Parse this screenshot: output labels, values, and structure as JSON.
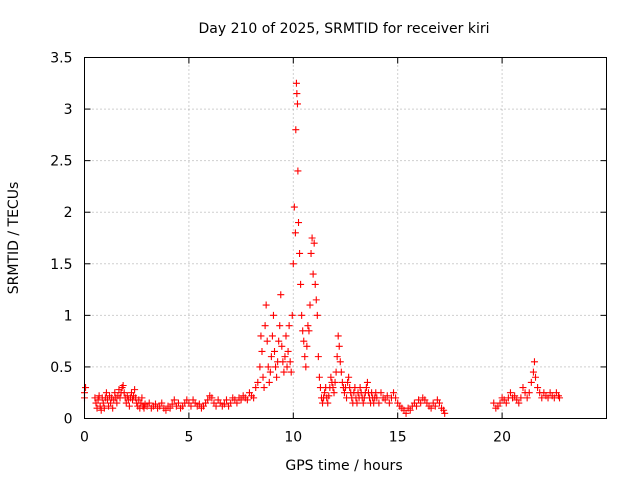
{
  "chart_data": {
    "type": "scatter",
    "title": "Day 210 of 2025, SRMTID for receiver kiri",
    "xlabel": "GPS time / hours",
    "ylabel": "SRMTID / TECUs",
    "xlim": [
      0,
      25
    ],
    "ylim": [
      0,
      3.5
    ],
    "x_ticks": [
      0,
      5,
      10,
      15,
      20
    ],
    "x_tick_labels": [
      "0",
      "5",
      "10",
      "15",
      "20"
    ],
    "y_ticks": [
      0,
      0.5,
      1,
      1.5,
      2,
      2.5,
      3,
      3.5
    ],
    "y_tick_labels": [
      "0",
      "0.5",
      "1",
      "1.5",
      "2",
      "2.5",
      "3",
      "3.5"
    ],
    "grid": true,
    "marker": "+",
    "series": [
      {
        "name": "kiri",
        "color": "#ff0000",
        "points": [
          [
            0.0,
            0.25
          ],
          [
            0.0,
            0.2
          ],
          [
            0.05,
            0.3
          ],
          [
            0.5,
            0.2
          ],
          [
            0.55,
            0.15
          ],
          [
            0.6,
            0.1
          ],
          [
            0.65,
            0.18
          ],
          [
            0.7,
            0.22
          ],
          [
            0.75,
            0.12
          ],
          [
            0.8,
            0.08
          ],
          [
            0.85,
            0.2
          ],
          [
            0.9,
            0.15
          ],
          [
            0.95,
            0.1
          ],
          [
            1.0,
            0.2
          ],
          [
            1.05,
            0.25
          ],
          [
            1.1,
            0.18
          ],
          [
            1.15,
            0.12
          ],
          [
            1.2,
            0.22
          ],
          [
            1.25,
            0.15
          ],
          [
            1.3,
            0.2
          ],
          [
            1.35,
            0.1
          ],
          [
            1.4,
            0.18
          ],
          [
            1.45,
            0.25
          ],
          [
            1.5,
            0.2
          ],
          [
            1.55,
            0.15
          ],
          [
            1.6,
            0.22
          ],
          [
            1.65,
            0.28
          ],
          [
            1.7,
            0.2
          ],
          [
            1.75,
            0.25
          ],
          [
            1.8,
            0.3
          ],
          [
            1.85,
            0.32
          ],
          [
            1.9,
            0.25
          ],
          [
            1.95,
            0.2
          ],
          [
            2.0,
            0.15
          ],
          [
            2.05,
            0.22
          ],
          [
            2.1,
            0.18
          ],
          [
            2.15,
            0.12
          ],
          [
            2.2,
            0.2
          ],
          [
            2.25,
            0.25
          ],
          [
            2.3,
            0.18
          ],
          [
            2.35,
            0.22
          ],
          [
            2.4,
            0.28
          ],
          [
            2.45,
            0.2
          ],
          [
            2.5,
            0.15
          ],
          [
            2.55,
            0.12
          ],
          [
            2.6,
            0.18
          ],
          [
            2.65,
            0.1
          ],
          [
            2.7,
            0.15
          ],
          [
            2.75,
            0.2
          ],
          [
            2.8,
            0.12
          ],
          [
            2.85,
            0.1
          ],
          [
            2.9,
            0.14
          ],
          [
            3.0,
            0.12
          ],
          [
            3.1,
            0.15
          ],
          [
            3.2,
            0.1
          ],
          [
            3.3,
            0.12
          ],
          [
            3.4,
            0.14
          ],
          [
            3.5,
            0.1
          ],
          [
            3.6,
            0.12
          ],
          [
            3.7,
            0.15
          ],
          [
            3.8,
            0.1
          ],
          [
            3.9,
            0.08
          ],
          [
            4.0,
            0.12
          ],
          [
            4.1,
            0.1
          ],
          [
            4.2,
            0.14
          ],
          [
            4.3,
            0.18
          ],
          [
            4.4,
            0.12
          ],
          [
            4.5,
            0.15
          ],
          [
            4.6,
            0.1
          ],
          [
            4.7,
            0.12
          ],
          [
            4.8,
            0.15
          ],
          [
            4.9,
            0.18
          ],
          [
            5.0,
            0.15
          ],
          [
            5.1,
            0.12
          ],
          [
            5.2,
            0.18
          ],
          [
            5.3,
            0.15
          ],
          [
            5.4,
            0.12
          ],
          [
            5.5,
            0.14
          ],
          [
            5.6,
            0.1
          ],
          [
            5.7,
            0.12
          ],
          [
            5.8,
            0.15
          ],
          [
            5.9,
            0.18
          ],
          [
            6.0,
            0.22
          ],
          [
            6.1,
            0.2
          ],
          [
            6.2,
            0.15
          ],
          [
            6.3,
            0.12
          ],
          [
            6.4,
            0.18
          ],
          [
            6.5,
            0.15
          ],
          [
            6.6,
            0.12
          ],
          [
            6.7,
            0.14
          ],
          [
            6.8,
            0.18
          ],
          [
            6.9,
            0.12
          ],
          [
            7.0,
            0.15
          ],
          [
            7.1,
            0.2
          ],
          [
            7.2,
            0.18
          ],
          [
            7.3,
            0.15
          ],
          [
            7.4,
            0.2
          ],
          [
            7.5,
            0.18
          ],
          [
            7.6,
            0.22
          ],
          [
            7.7,
            0.2
          ],
          [
            7.8,
            0.18
          ],
          [
            7.9,
            0.25
          ],
          [
            8.0,
            0.22
          ],
          [
            8.1,
            0.2
          ],
          [
            8.2,
            0.3
          ],
          [
            8.3,
            0.35
          ],
          [
            8.4,
            0.5
          ],
          [
            8.45,
            0.8
          ],
          [
            8.5,
            0.65
          ],
          [
            8.55,
            0.4
          ],
          [
            8.6,
            0.3
          ],
          [
            8.65,
            0.9
          ],
          [
            8.7,
            1.1
          ],
          [
            8.75,
            0.75
          ],
          [
            8.8,
            0.5
          ],
          [
            8.85,
            0.35
          ],
          [
            8.9,
            0.45
          ],
          [
            8.95,
            0.6
          ],
          [
            9.0,
            0.8
          ],
          [
            9.05,
            1.0
          ],
          [
            9.1,
            0.65
          ],
          [
            9.15,
            0.5
          ],
          [
            9.2,
            0.4
          ],
          [
            9.25,
            0.55
          ],
          [
            9.3,
            0.75
          ],
          [
            9.35,
            0.9
          ],
          [
            9.4,
            1.2
          ],
          [
            9.45,
            0.7
          ],
          [
            9.5,
            0.55
          ],
          [
            9.55,
            0.45
          ],
          [
            9.6,
            0.6
          ],
          [
            9.65,
            0.8
          ],
          [
            9.7,
            0.5
          ],
          [
            9.75,
            0.65
          ],
          [
            9.8,
            0.9
          ],
          [
            9.85,
            0.55
          ],
          [
            9.9,
            0.45
          ],
          [
            9.95,
            1.0
          ],
          [
            10.0,
            1.5
          ],
          [
            10.05,
            2.05
          ],
          [
            10.1,
            1.8
          ],
          [
            10.12,
            2.8
          ],
          [
            10.15,
            3.25
          ],
          [
            10.17,
            3.15
          ],
          [
            10.2,
            3.05
          ],
          [
            10.22,
            2.4
          ],
          [
            10.25,
            1.9
          ],
          [
            10.3,
            1.6
          ],
          [
            10.35,
            1.3
          ],
          [
            10.4,
            1.0
          ],
          [
            10.45,
            0.85
          ],
          [
            10.5,
            0.75
          ],
          [
            10.55,
            0.6
          ],
          [
            10.6,
            0.5
          ],
          [
            10.65,
            0.7
          ],
          [
            10.7,
            0.9
          ],
          [
            10.75,
            0.85
          ],
          [
            10.8,
            1.1
          ],
          [
            10.85,
            1.6
          ],
          [
            10.9,
            1.75
          ],
          [
            10.95,
            1.4
          ],
          [
            11.0,
            1.7
          ],
          [
            11.05,
            1.3
          ],
          [
            11.1,
            1.15
          ],
          [
            11.15,
            1.0
          ],
          [
            11.2,
            0.6
          ],
          [
            11.25,
            0.4
          ],
          [
            11.3,
            0.3
          ],
          [
            11.35,
            0.2
          ],
          [
            11.4,
            0.15
          ],
          [
            11.45,
            0.2
          ],
          [
            11.5,
            0.25
          ],
          [
            11.55,
            0.3
          ],
          [
            11.6,
            0.2
          ],
          [
            11.65,
            0.15
          ],
          [
            11.7,
            0.22
          ],
          [
            11.75,
            0.3
          ],
          [
            11.8,
            0.4
          ],
          [
            11.85,
            0.35
          ],
          [
            11.9,
            0.3
          ],
          [
            11.95,
            0.25
          ],
          [
            12.0,
            0.35
          ],
          [
            12.05,
            0.45
          ],
          [
            12.1,
            0.6
          ],
          [
            12.15,
            0.8
          ],
          [
            12.2,
            0.7
          ],
          [
            12.25,
            0.55
          ],
          [
            12.3,
            0.45
          ],
          [
            12.35,
            0.35
          ],
          [
            12.4,
            0.3
          ],
          [
            12.45,
            0.25
          ],
          [
            12.5,
            0.3
          ],
          [
            12.55,
            0.2
          ],
          [
            12.6,
            0.35
          ],
          [
            12.65,
            0.4
          ],
          [
            12.7,
            0.3
          ],
          [
            12.75,
            0.25
          ],
          [
            12.8,
            0.2
          ],
          [
            12.85,
            0.15
          ],
          [
            12.9,
            0.25
          ],
          [
            12.95,
            0.3
          ],
          [
            13.0,
            0.2
          ],
          [
            13.05,
            0.15
          ],
          [
            13.1,
            0.25
          ],
          [
            13.15,
            0.2
          ],
          [
            13.2,
            0.3
          ],
          [
            13.25,
            0.25
          ],
          [
            13.3,
            0.2
          ],
          [
            13.35,
            0.15
          ],
          [
            13.4,
            0.2
          ],
          [
            13.45,
            0.25
          ],
          [
            13.5,
            0.3
          ],
          [
            13.55,
            0.35
          ],
          [
            13.6,
            0.25
          ],
          [
            13.65,
            0.2
          ],
          [
            13.7,
            0.15
          ],
          [
            13.75,
            0.25
          ],
          [
            13.8,
            0.2
          ],
          [
            13.85,
            0.15
          ],
          [
            13.9,
            0.2
          ],
          [
            13.95,
            0.25
          ],
          [
            14.0,
            0.2
          ],
          [
            14.1,
            0.15
          ],
          [
            14.2,
            0.25
          ],
          [
            14.3,
            0.2
          ],
          [
            14.4,
            0.18
          ],
          [
            14.5,
            0.22
          ],
          [
            14.6,
            0.15
          ],
          [
            14.7,
            0.2
          ],
          [
            14.8,
            0.25
          ],
          [
            14.9,
            0.2
          ],
          [
            15.0,
            0.15
          ],
          [
            15.1,
            0.12
          ],
          [
            15.2,
            0.1
          ],
          [
            15.3,
            0.08
          ],
          [
            15.4,
            0.05
          ],
          [
            15.5,
            0.1
          ],
          [
            15.6,
            0.08
          ],
          [
            15.7,
            0.12
          ],
          [
            15.8,
            0.15
          ],
          [
            15.9,
            0.12
          ],
          [
            16.0,
            0.18
          ],
          [
            16.1,
            0.15
          ],
          [
            16.2,
            0.2
          ],
          [
            16.3,
            0.18
          ],
          [
            16.4,
            0.15
          ],
          [
            16.5,
            0.12
          ],
          [
            16.6,
            0.1
          ],
          [
            16.7,
            0.15
          ],
          [
            16.8,
            0.12
          ],
          [
            16.9,
            0.18
          ],
          [
            17.0,
            0.15
          ],
          [
            17.1,
            0.1
          ],
          [
            17.2,
            0.08
          ],
          [
            17.25,
            0.05
          ],
          [
            19.6,
            0.15
          ],
          [
            19.7,
            0.1
          ],
          [
            19.8,
            0.12
          ],
          [
            19.9,
            0.15
          ],
          [
            20.0,
            0.2
          ],
          [
            20.1,
            0.18
          ],
          [
            20.2,
            0.15
          ],
          [
            20.3,
            0.2
          ],
          [
            20.4,
            0.25
          ],
          [
            20.5,
            0.2
          ],
          [
            20.6,
            0.22
          ],
          [
            20.7,
            0.18
          ],
          [
            20.8,
            0.15
          ],
          [
            20.9,
            0.2
          ],
          [
            21.0,
            0.3
          ],
          [
            21.1,
            0.25
          ],
          [
            21.2,
            0.2
          ],
          [
            21.3,
            0.25
          ],
          [
            21.4,
            0.35
          ],
          [
            21.5,
            0.45
          ],
          [
            21.55,
            0.55
          ],
          [
            21.6,
            0.4
          ],
          [
            21.7,
            0.3
          ],
          [
            21.8,
            0.25
          ],
          [
            21.9,
            0.2
          ],
          [
            22.0,
            0.25
          ],
          [
            22.1,
            0.22
          ],
          [
            22.2,
            0.2
          ],
          [
            22.3,
            0.25
          ],
          [
            22.4,
            0.22
          ],
          [
            22.5,
            0.2
          ],
          [
            22.6,
            0.25
          ],
          [
            22.7,
            0.22
          ],
          [
            22.75,
            0.2
          ]
        ]
      }
    ]
  }
}
